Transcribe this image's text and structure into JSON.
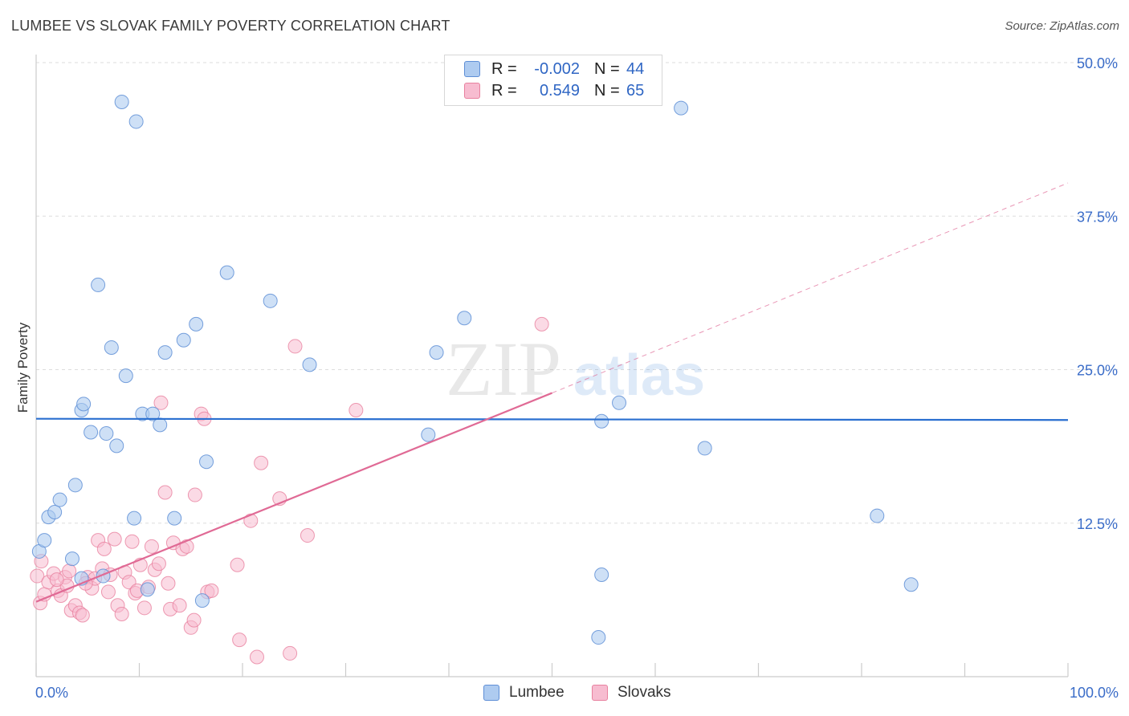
{
  "header": {
    "title": "LUMBEE VS SLOVAK FAMILY POVERTY CORRELATION CHART",
    "source": "Source: ZipAtlas.com"
  },
  "watermark": {
    "zip": "ZIP",
    "atlas": "atlas"
  },
  "legend_box": {
    "rows": [
      {
        "r_label": "R =",
        "r_value": "-0.002",
        "n_label": "N =",
        "n_value": "44"
      },
      {
        "r_label": "R =",
        "r_value": "0.549",
        "n_label": "N =",
        "n_value": "65"
      }
    ]
  },
  "bottom_legend": {
    "lumbee": "Lumbee",
    "slovaks": "Slovaks"
  },
  "colors": {
    "lumbee_fill": "#aecbf0",
    "lumbee_stroke": "#5f8fd6",
    "lumbee_line": "#2a6fd0",
    "slovak_fill": "#f7bcd0",
    "slovak_stroke": "#e8819f",
    "slovak_line": "#e06a95",
    "tick_label": "#3a6cc8",
    "grid": "#dddddd"
  },
  "chart_data": {
    "type": "scatter",
    "title": "LUMBEE VS SLOVAK FAMILY POVERTY CORRELATION CHART",
    "xlabel": "",
    "ylabel": "Family Poverty",
    "xlim": [
      0,
      100
    ],
    "ylim": [
      0,
      50
    ],
    "x_tick_labels": [
      "0.0%",
      "100.0%"
    ],
    "y_ticks": [
      12.5,
      25.0,
      37.5,
      50.0
    ],
    "y_tick_labels": [
      "12.5%",
      "25.0%",
      "37.5%",
      "50.0%"
    ],
    "grid": true,
    "legend": "bottom-center",
    "series": [
      {
        "name": "Lumbee",
        "r": -0.002,
        "n": 44,
        "trend": {
          "x": [
            0,
            100
          ],
          "y": [
            21.0,
            20.9
          ]
        },
        "points": [
          [
            0.3,
            10.2
          ],
          [
            0.8,
            11.1
          ],
          [
            1.2,
            13.0
          ],
          [
            1.8,
            13.4
          ],
          [
            2.3,
            14.4
          ],
          [
            3.5,
            9.6
          ],
          [
            3.8,
            15.6
          ],
          [
            4.4,
            8.0
          ],
          [
            4.4,
            21.7
          ],
          [
            4.6,
            22.2
          ],
          [
            5.3,
            19.9
          ],
          [
            6.0,
            31.9
          ],
          [
            6.5,
            8.2
          ],
          [
            6.8,
            19.8
          ],
          [
            7.3,
            26.8
          ],
          [
            7.8,
            18.8
          ],
          [
            8.3,
            46.8
          ],
          [
            8.7,
            24.5
          ],
          [
            9.5,
            12.9
          ],
          [
            9.7,
            45.2
          ],
          [
            10.3,
            21.4
          ],
          [
            10.8,
            7.1
          ],
          [
            11.3,
            21.4
          ],
          [
            12.0,
            20.5
          ],
          [
            12.5,
            26.4
          ],
          [
            13.4,
            12.9
          ],
          [
            14.3,
            27.4
          ],
          [
            15.5,
            28.7
          ],
          [
            16.1,
            6.2
          ],
          [
            16.5,
            17.5
          ],
          [
            18.5,
            32.9
          ],
          [
            22.7,
            30.6
          ],
          [
            26.5,
            25.4
          ],
          [
            38.0,
            19.7
          ],
          [
            38.8,
            26.4
          ],
          [
            41.5,
            29.2
          ],
          [
            54.5,
            3.2
          ],
          [
            54.8,
            8.3
          ],
          [
            54.8,
            20.8
          ],
          [
            56.5,
            22.3
          ],
          [
            62.5,
            46.3
          ],
          [
            64.8,
            18.6
          ],
          [
            81.5,
            13.1
          ],
          [
            84.8,
            7.5
          ]
        ]
      },
      {
        "name": "Slovaks",
        "r": 0.549,
        "n": 65,
        "trend": {
          "x": [
            0,
            50
          ],
          "y": [
            6.1,
            23.1
          ]
        },
        "trend_dashed": {
          "x": [
            50,
            100
          ],
          "y": [
            23.1,
            40.2
          ]
        },
        "points": [
          [
            0.1,
            8.2
          ],
          [
            0.4,
            6.0
          ],
          [
            0.8,
            6.7
          ],
          [
            1.2,
            7.7
          ],
          [
            1.7,
            8.4
          ],
          [
            2.1,
            7.0
          ],
          [
            2.4,
            6.6
          ],
          [
            2.8,
            8.1
          ],
          [
            3.0,
            7.4
          ],
          [
            3.2,
            8.6
          ],
          [
            3.4,
            5.4
          ],
          [
            3.8,
            5.8
          ],
          [
            4.2,
            5.2
          ],
          [
            4.5,
            5.0
          ],
          [
            5.0,
            8.1
          ],
          [
            5.4,
            7.2
          ],
          [
            5.7,
            8.0
          ],
          [
            6.0,
            11.1
          ],
          [
            6.4,
            8.8
          ],
          [
            6.6,
            10.4
          ],
          [
            7.0,
            6.9
          ],
          [
            7.2,
            8.3
          ],
          [
            7.6,
            11.2
          ],
          [
            7.9,
            5.8
          ],
          [
            8.3,
            5.1
          ],
          [
            8.6,
            8.5
          ],
          [
            9.0,
            7.7
          ],
          [
            9.3,
            11.0
          ],
          [
            9.6,
            6.8
          ],
          [
            9.8,
            7.0
          ],
          [
            10.1,
            9.1
          ],
          [
            10.5,
            5.6
          ],
          [
            10.9,
            7.3
          ],
          [
            11.2,
            10.6
          ],
          [
            11.5,
            8.7
          ],
          [
            11.9,
            9.2
          ],
          [
            12.1,
            22.3
          ],
          [
            12.5,
            15.0
          ],
          [
            12.8,
            7.6
          ],
          [
            13.0,
            5.5
          ],
          [
            13.3,
            10.9
          ],
          [
            13.9,
            5.8
          ],
          [
            14.2,
            10.4
          ],
          [
            14.6,
            10.6
          ],
          [
            15.0,
            4.0
          ],
          [
            15.3,
            4.6
          ],
          [
            15.4,
            14.8
          ],
          [
            16.0,
            21.4
          ],
          [
            16.3,
            21.0
          ],
          [
            16.6,
            6.9
          ],
          [
            17.0,
            7.0
          ],
          [
            19.5,
            9.1
          ],
          [
            19.7,
            3.0
          ],
          [
            20.8,
            12.7
          ],
          [
            21.4,
            1.6
          ],
          [
            21.8,
            17.4
          ],
          [
            23.6,
            14.5
          ],
          [
            24.6,
            1.9
          ],
          [
            25.1,
            26.9
          ],
          [
            26.3,
            11.5
          ],
          [
            31.0,
            21.7
          ],
          [
            49.0,
            28.7
          ],
          [
            0.5,
            9.4
          ],
          [
            4.8,
            7.6
          ],
          [
            2.0,
            7.9
          ]
        ]
      }
    ]
  }
}
